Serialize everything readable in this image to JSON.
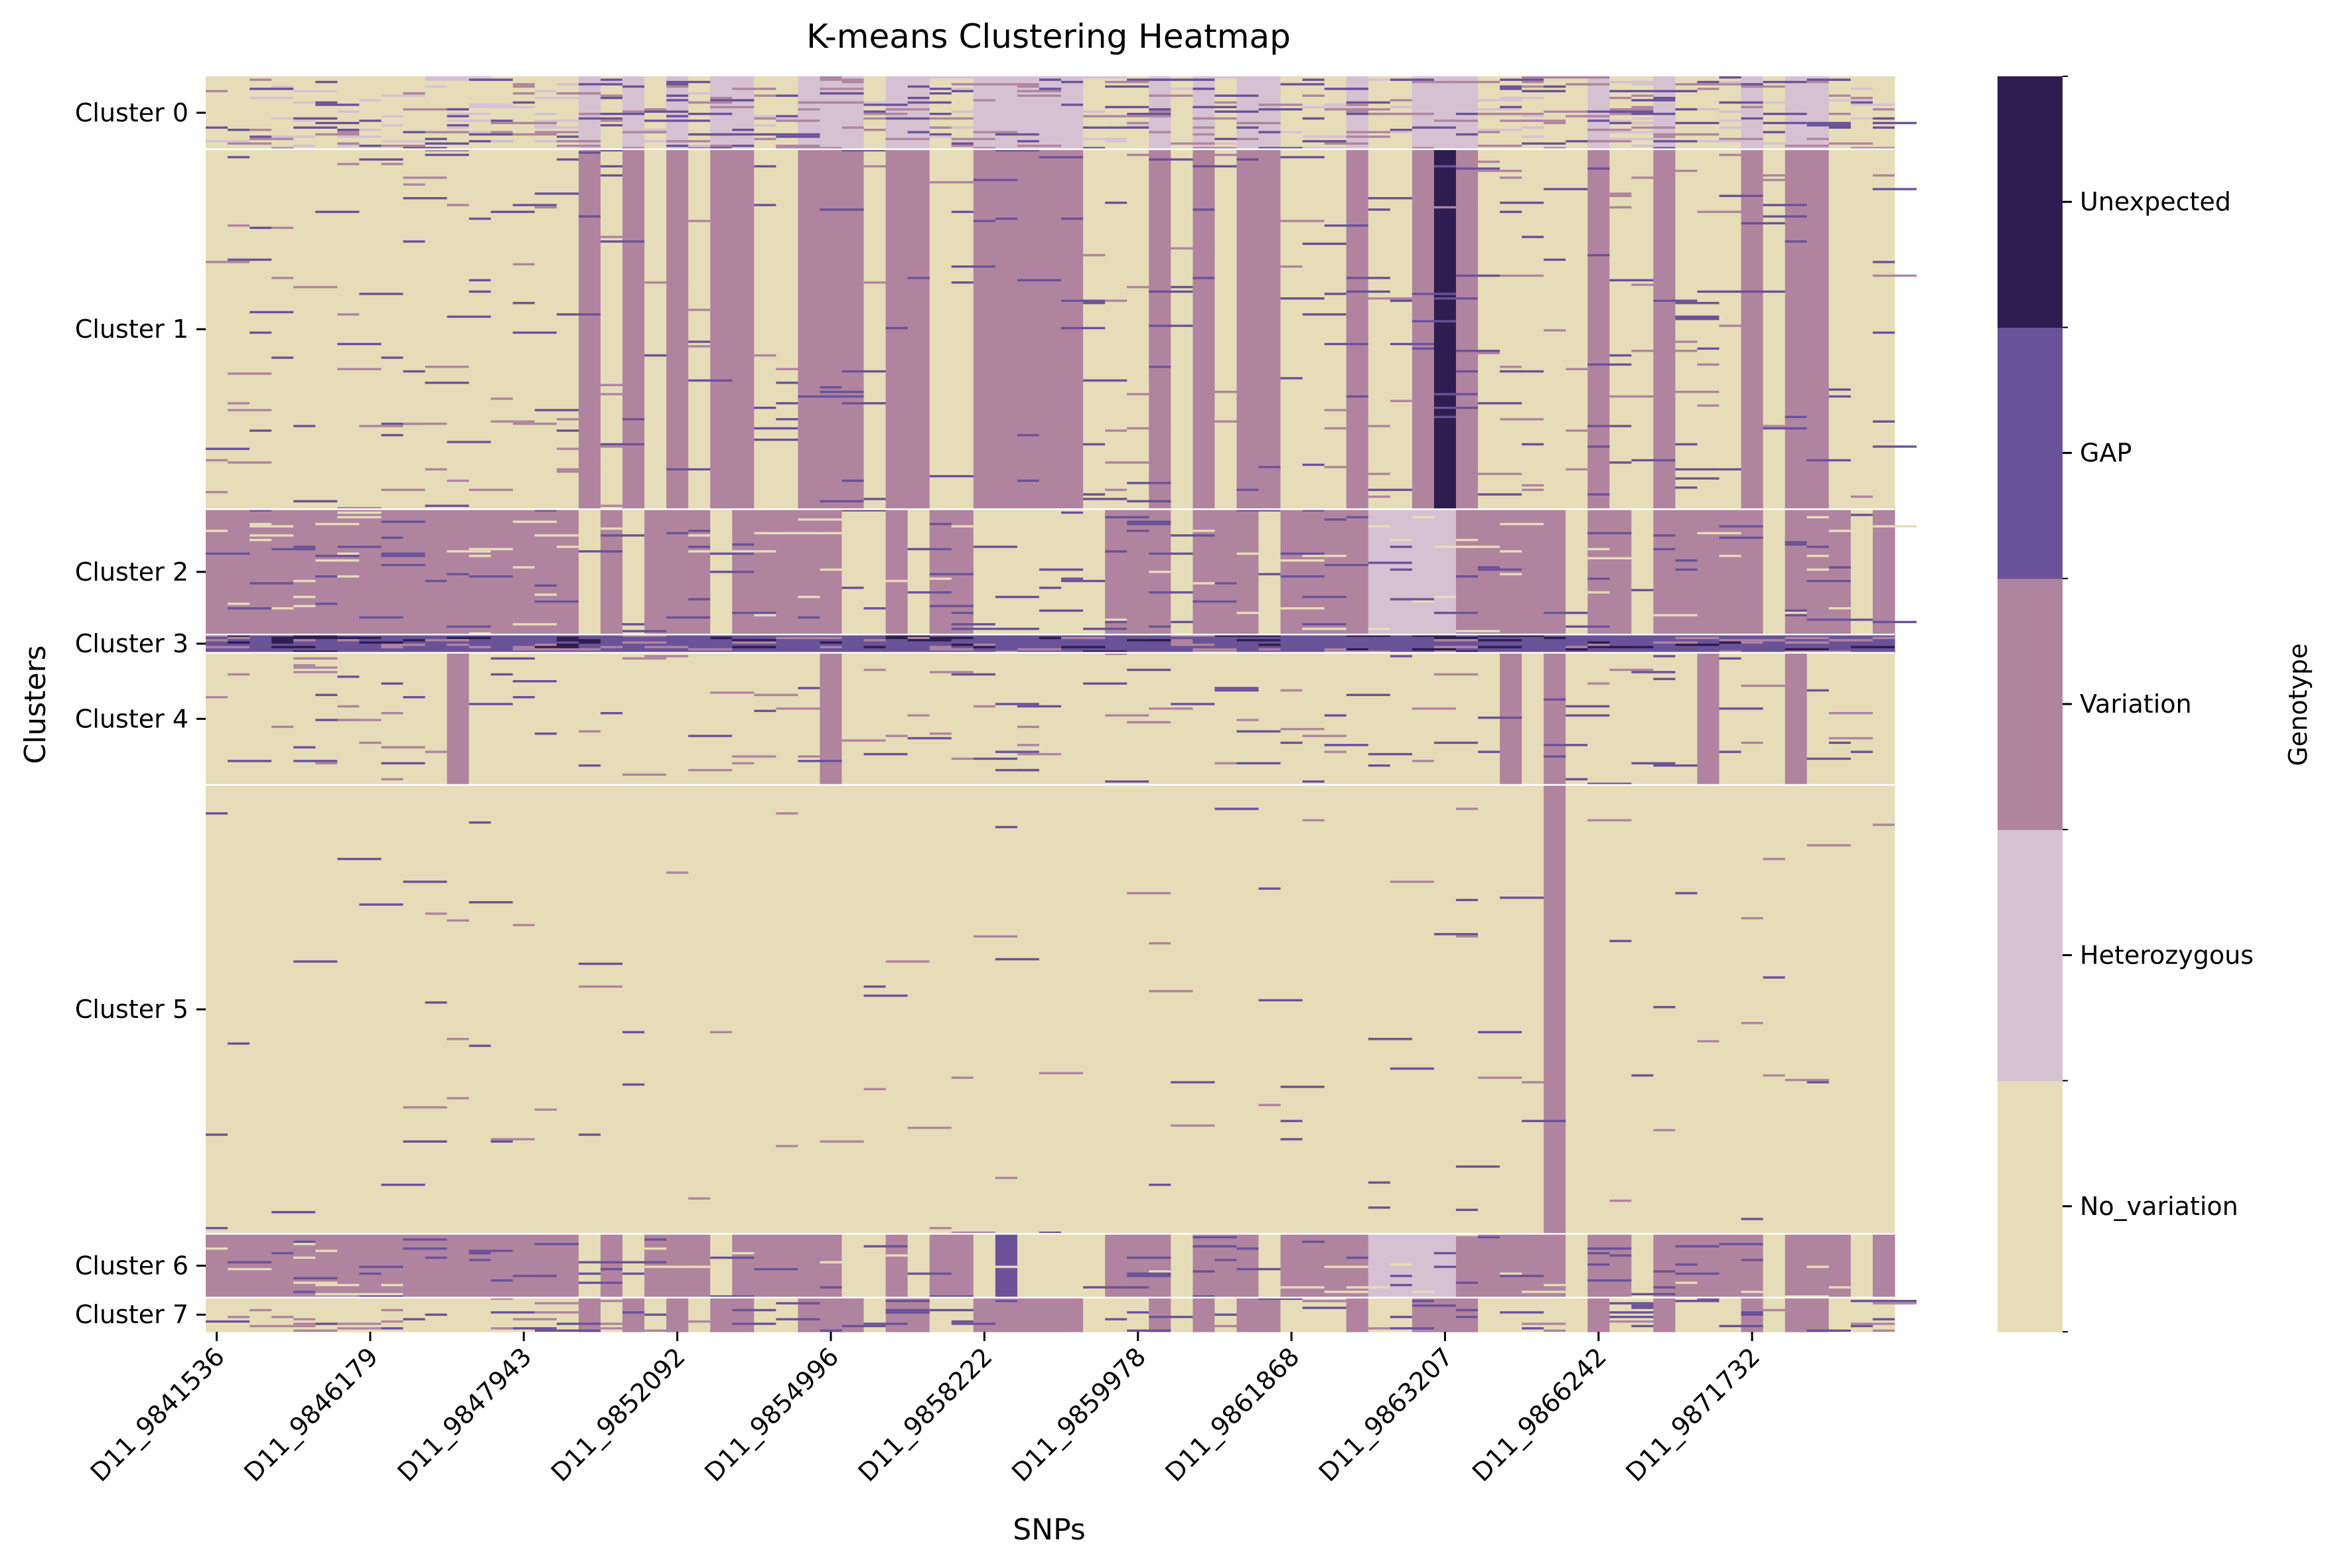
{
  "chart_data": {
    "type": "heatmap",
    "title": "K-means Clustering Heatmap",
    "xlabel": "SNPs",
    "ylabel": "Clusters",
    "colorbar_label": "Genotype",
    "x_tick_labels": [
      "D11_9841536",
      "D11_9846179",
      "D11_9847943",
      "D11_9852092",
      "D11_9854996",
      "D11_9858222",
      "D11_9859978",
      "D11_9861868",
      "D11_9863207",
      "D11_9866242",
      "D11_9871732"
    ],
    "y_tick_labels": [
      "Cluster 0",
      "Cluster 1",
      "Cluster 2",
      "Cluster 3",
      "Cluster 4",
      "Cluster 5",
      "Cluster 6",
      "Cluster 7"
    ],
    "categories": [
      {
        "name": "No_variation",
        "color": "#e6ddb8"
      },
      {
        "name": "Heterozygous",
        "color": "#d6c1d3"
      },
      {
        "name": "Variation",
        "color": "#b0849f"
      },
      {
        "name": "GAP",
        "color": "#6a5299"
      },
      {
        "name": "Unexpected",
        "color": "#2e1d50"
      }
    ],
    "n_snps": 77,
    "clusters": [
      {
        "label": "Cluster 0",
        "rows": 32,
        "dominant": "No_variation",
        "noise": 0.18,
        "mix": [
          "Variation",
          "Heterozygous",
          "GAP"
        ]
      },
      {
        "label": "Cluster 1",
        "rows": 158,
        "dominant": "No_variation",
        "noise": 0.03,
        "mix": [
          "GAP",
          "Variation"
        ]
      },
      {
        "label": "Cluster 2",
        "rows": 55,
        "dominant": "Variation",
        "noise": 0.05,
        "mix": [
          "GAP",
          "No_variation"
        ]
      },
      {
        "label": "Cluster 3",
        "rows": 8,
        "dominant": "GAP",
        "noise": 0.2,
        "mix": [
          "Variation",
          "Unexpected"
        ]
      },
      {
        "label": "Cluster 4",
        "rows": 58,
        "dominant": "No_variation",
        "noise": 0.03,
        "mix": [
          "GAP",
          "Variation"
        ]
      },
      {
        "label": "Cluster 5",
        "rows": 197,
        "dominant": "No_variation",
        "noise": 0.006,
        "mix": [
          "Variation",
          "GAP"
        ]
      },
      {
        "label": "Cluster 6",
        "rows": 28,
        "dominant": "Variation",
        "noise": 0.05,
        "mix": [
          "GAP",
          "No_variation"
        ]
      },
      {
        "label": "Cluster 7",
        "rows": 15,
        "dominant": "No_variation",
        "noise": 0.1,
        "mix": [
          "Variation",
          "GAP"
        ]
      }
    ],
    "column_patterns": [
      {
        "clusters": [
          "Cluster 1",
          "Cluster 7"
        ],
        "value": "Variation",
        "columns": [
          17,
          19,
          21,
          23,
          24,
          27,
          28,
          29,
          31,
          32,
          35,
          36,
          37,
          38,
          39,
          43,
          45,
          47,
          48,
          52,
          55,
          56,
          57,
          63,
          66,
          70,
          72,
          73
        ]
      },
      {
        "clusters": [
          "Cluster 0"
        ],
        "value": "Heterozygous",
        "columns": [
          17,
          19,
          21,
          23,
          24,
          27,
          28,
          29,
          31,
          32,
          35,
          36,
          37,
          38,
          39,
          43,
          45,
          47,
          48,
          52,
          55,
          56,
          57,
          63,
          66,
          70,
          72,
          73
        ]
      },
      {
        "clusters": [
          "Cluster 2",
          "Cluster 6"
        ],
        "value": "No_variation",
        "columns": [
          17,
          19,
          23,
          29,
          30,
          32,
          35,
          36,
          37,
          38,
          39,
          40,
          44,
          48,
          54,
          62,
          65,
          71,
          75
        ]
      },
      {
        "clusters": [
          "Cluster 2",
          "Cluster 6"
        ],
        "value": "Heterozygous",
        "columns": [
          53,
          54,
          55,
          56
        ]
      },
      {
        "clusters": [
          "Cluster 6"
        ],
        "value": "GAP",
        "columns": [
          36
        ]
      },
      {
        "clusters": [
          "Cluster 1"
        ],
        "value": "Unexpected",
        "columns": [
          56
        ]
      },
      {
        "clusters": [
          "Cluster 4"
        ],
        "value": "Variation",
        "columns": [
          11,
          28,
          59,
          61,
          68,
          72
        ]
      },
      {
        "clusters": [
          "Cluster 5"
        ],
        "value": "Variation",
        "columns": [
          61
        ]
      }
    ]
  }
}
